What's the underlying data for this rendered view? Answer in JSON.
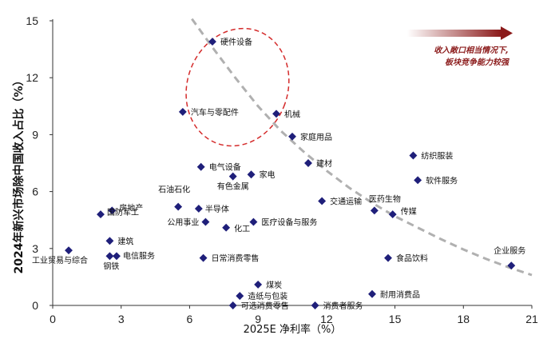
{
  "chart_data": {
    "type": "scatter",
    "title": "",
    "xlabel": "2025E 净利率（%）",
    "ylabel": "2024年新兴市场除中国收入占比（%）",
    "xlim": [
      0,
      21
    ],
    "ylim": [
      0,
      15
    ],
    "xticks": [
      "0",
      "3",
      "6",
      "9",
      "12",
      "15",
      "18",
      "21"
    ],
    "yticks": [
      "0",
      "3",
      "6",
      "9",
      "12",
      "15"
    ],
    "grid": false,
    "marker_color": "#1f1f7a",
    "trend_color": "#b0b0b0",
    "ellipse_color": "#d42b2b",
    "arrow_color": "#8b1a1a",
    "annotation": [
      "收入敞口相当情况下,",
      "板块竞争能力较强"
    ],
    "points": [
      {
        "label": "硬件设备",
        "x": 7.0,
        "y": 13.9
      },
      {
        "label": "汽车与零配件",
        "x": 5.7,
        "y": 10.2
      },
      {
        "label": "机械",
        "x": 9.8,
        "y": 10.1
      },
      {
        "label": "家庭用品",
        "x": 10.5,
        "y": 8.9
      },
      {
        "label": "纺织服装",
        "x": 15.8,
        "y": 7.9
      },
      {
        "label": "建材",
        "x": 11.2,
        "y": 7.5
      },
      {
        "label": "电气设备",
        "x": 6.5,
        "y": 7.3
      },
      {
        "label": "家电",
        "x": 8.7,
        "y": 6.9
      },
      {
        "label": "有色金属",
        "x": 7.9,
        "y": 6.8
      },
      {
        "label": "软件服务",
        "x": 16.0,
        "y": 6.6
      },
      {
        "label": "交通运输",
        "x": 11.8,
        "y": 5.5
      },
      {
        "label": "医药生物",
        "x": 14.1,
        "y": 5.0
      },
      {
        "label": "石油石化",
        "x": 5.5,
        "y": 5.2
      },
      {
        "label": "半导体",
        "x": 6.4,
        "y": 5.1
      },
      {
        "label": "房地产",
        "x": 2.6,
        "y": 5.0
      },
      {
        "label": "国防军工",
        "x": 2.1,
        "y": 4.8
      },
      {
        "label": "传媒",
        "x": 14.9,
        "y": 4.8
      },
      {
        "label": "公用事业",
        "x": 6.7,
        "y": 4.4
      },
      {
        "label": "医疗设备与服务",
        "x": 8.8,
        "y": 4.4
      },
      {
        "label": "化工",
        "x": 7.6,
        "y": 4.1
      },
      {
        "label": "建筑",
        "x": 2.5,
        "y": 3.4
      },
      {
        "label": "工业贸易与综合",
        "x": 0.7,
        "y": 2.9
      },
      {
        "label": "电信服务",
        "x": 2.8,
        "y": 2.6
      },
      {
        "label": "钢铁",
        "x": 2.5,
        "y": 2.6
      },
      {
        "label": "日常消费零售",
        "x": 6.6,
        "y": 2.5
      },
      {
        "label": "食品饮料",
        "x": 14.7,
        "y": 2.5
      },
      {
        "label": "企业服务",
        "x": 20.1,
        "y": 2.1
      },
      {
        "label": "煤炭",
        "x": 9.0,
        "y": 1.1
      },
      {
        "label": "耐用消费品",
        "x": 14.0,
        "y": 0.6
      },
      {
        "label": "造纸与包装",
        "x": 8.2,
        "y": 0.5
      },
      {
        "label": "可选消费零售",
        "x": 7.9,
        "y": 0.0
      },
      {
        "label": "消费者服务",
        "x": 11.5,
        "y": 0.0
      }
    ],
    "trend_line": [
      {
        "x": 6.1,
        "y": 15.1
      },
      {
        "x": 7.0,
        "y": 13.6
      },
      {
        "x": 8.0,
        "y": 12.0
      },
      {
        "x": 9.0,
        "y": 10.5
      },
      {
        "x": 10.0,
        "y": 9.2
      },
      {
        "x": 11.0,
        "y": 8.1
      },
      {
        "x": 12.0,
        "y": 7.1
      },
      {
        "x": 13.0,
        "y": 6.2
      },
      {
        "x": 14.0,
        "y": 5.4
      },
      {
        "x": 15.0,
        "y": 4.7
      },
      {
        "x": 16.0,
        "y": 4.1
      },
      {
        "x": 17.0,
        "y": 3.5
      },
      {
        "x": 18.0,
        "y": 2.95
      },
      {
        "x": 19.0,
        "y": 2.45
      },
      {
        "x": 20.0,
        "y": 2.0
      },
      {
        "x": 21.0,
        "y": 1.6
      }
    ],
    "ellipse": {
      "cx": 8.1,
      "cy": 11.5,
      "rx": 2.2,
      "ry": 3.15,
      "rotate": 20
    }
  }
}
